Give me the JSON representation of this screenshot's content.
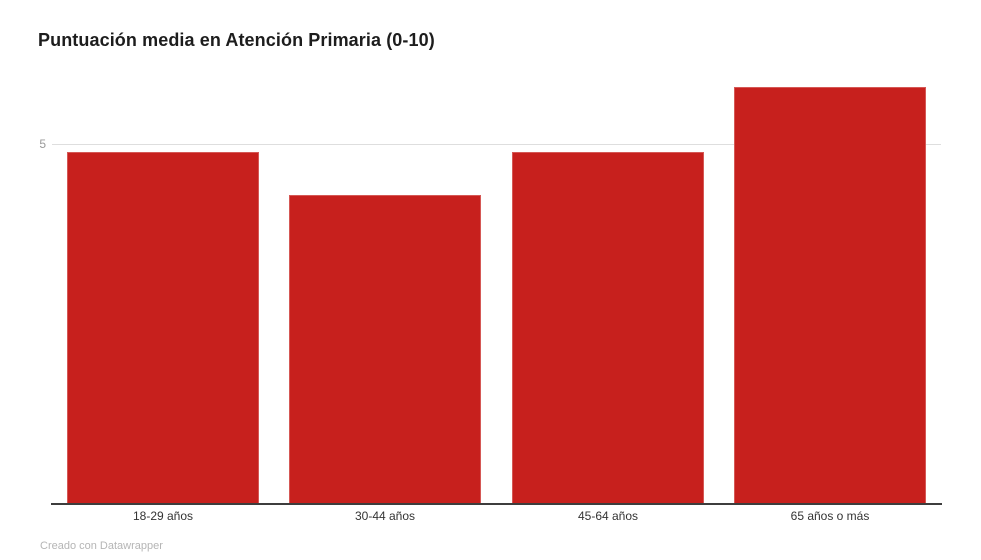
{
  "chart_data": {
    "type": "bar",
    "title": "Puntuación media en Atención Primaria (0-10)",
    "categories": [
      "18-29 años",
      "30-44 años",
      "45-64 años",
      "65 años o más"
    ],
    "values": [
      4.9,
      4.3,
      4.9,
      5.8
    ],
    "xlabel": "",
    "ylabel": "",
    "ylim": [
      0,
      6.2
    ],
    "yticks": [
      {
        "value": 5,
        "label": "5"
      }
    ],
    "grid": "single horizontal gridline at y=5, x-axis baseline at 0",
    "legend": "none",
    "bar_color": "#c7201d"
  },
  "footer": {
    "attribution": "Creado con Datawrapper"
  },
  "colors": {
    "bar": "#c7201d",
    "gridline": "#dedede",
    "axis_line": "#3d3d3d",
    "ytick_label": "#9a9a9a",
    "title": "#1d1d1d",
    "category_label": "#333333",
    "attribution": "#b5b5b5",
    "background": "#ffffff"
  }
}
